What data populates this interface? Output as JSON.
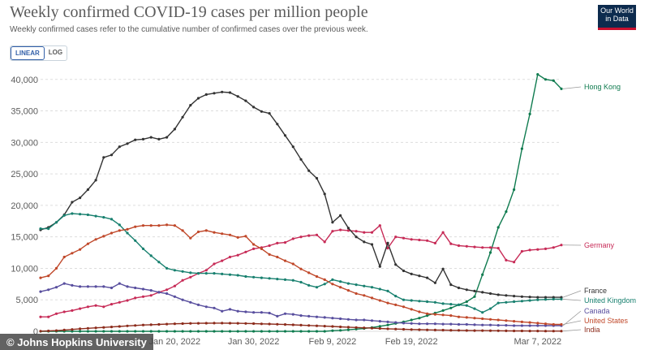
{
  "header": {
    "title": "Weekly confirmed COVID-19 cases per million people",
    "subtitle": "Weekly confirmed cases refer to the cumulative number of confirmed cases over the previous week.",
    "logo_line1": "Our World",
    "logo_line2": "in Data"
  },
  "controls": {
    "linear_label": "LINEAR",
    "log_label": "LOG"
  },
  "source": "© Johns Hopkins University",
  "chart_data": {
    "type": "line",
    "x_dates": [
      "2022-01-03",
      "2022-01-04",
      "2022-01-05",
      "2022-01-06",
      "2022-01-07",
      "2022-01-08",
      "2022-01-09",
      "2022-01-10",
      "2022-01-11",
      "2022-01-12",
      "2022-01-13",
      "2022-01-14",
      "2022-01-15",
      "2022-01-16",
      "2022-01-17",
      "2022-01-18",
      "2022-01-19",
      "2022-01-20",
      "2022-01-21",
      "2022-01-22",
      "2022-01-23",
      "2022-01-24",
      "2022-01-25",
      "2022-01-26",
      "2022-01-27",
      "2022-01-28",
      "2022-01-29",
      "2022-01-30",
      "2022-01-31",
      "2022-02-01",
      "2022-02-02",
      "2022-02-03",
      "2022-02-04",
      "2022-02-05",
      "2022-02-06",
      "2022-02-07",
      "2022-02-08",
      "2022-02-09",
      "2022-02-10",
      "2022-02-11",
      "2022-02-12",
      "2022-02-13",
      "2022-02-14",
      "2022-02-15",
      "2022-02-16",
      "2022-02-17",
      "2022-02-18",
      "2022-02-19",
      "2022-02-20",
      "2022-02-21",
      "2022-02-22",
      "2022-02-23",
      "2022-02-24",
      "2022-02-25",
      "2022-02-26",
      "2022-02-27",
      "2022-02-28",
      "2022-03-01",
      "2022-03-02",
      "2022-03-03",
      "2022-03-04",
      "2022-03-05",
      "2022-03-06",
      "2022-03-07",
      "2022-03-08",
      "2022-03-09",
      "2022-03-10"
    ],
    "x_tick_labels": [
      "Jan 20, 2022",
      "Jan 30, 2022",
      "Feb 9, 2022",
      "Feb 19, 2022",
      "Mar 7, 2022"
    ],
    "x_tick_dates": [
      "2022-01-20",
      "2022-01-30",
      "2022-02-09",
      "2022-02-19",
      "2022-03-07"
    ],
    "y_ticks": [
      0,
      5000,
      10000,
      15000,
      20000,
      25000,
      30000,
      35000,
      40000
    ],
    "y_tick_labels": [
      "0",
      "5,000",
      "10,000",
      "15,000",
      "20,000",
      "25,000",
      "30,000",
      "35,000",
      "40,000"
    ],
    "ylim": [
      0,
      41000
    ],
    "grid": "horizontal dashed",
    "legend": "line-end labels, right",
    "series": [
      {
        "name": "Hong Kong",
        "color": "#0f7b4f",
        "values": [
          0,
          0,
          0,
          0,
          0,
          0,
          0,
          0,
          0,
          0,
          0,
          0,
          0,
          0,
          0,
          0,
          0,
          0,
          0,
          0,
          0,
          0,
          0,
          0,
          0,
          0,
          0,
          0,
          0,
          0,
          0,
          0,
          0,
          0,
          0,
          0,
          0,
          100,
          150,
          250,
          350,
          450,
          600,
          800,
          1000,
          1250,
          1500,
          1800,
          2100,
          2500,
          2900,
          3300,
          3700,
          4200,
          4700,
          5500,
          9000,
          12500,
          16500,
          19000,
          22500,
          29000,
          34500,
          40800,
          40000,
          39800,
          38500
        ]
      },
      {
        "name": "Germany",
        "color": "#c72b57",
        "values": [
          2300,
          2300,
          2800,
          3100,
          3300,
          3600,
          3900,
          4100,
          3900,
          4300,
          4600,
          4900,
          5300,
          5500,
          5700,
          6200,
          6600,
          7200,
          8100,
          8600,
          9200,
          9700,
          10700,
          11200,
          11800,
          12100,
          12600,
          13100,
          13300,
          13600,
          14000,
          14100,
          14700,
          15000,
          15200,
          15300,
          14200,
          15900,
          16100,
          16000,
          15900,
          15700,
          15700,
          16800,
          13200,
          15000,
          14800,
          14600,
          14500,
          14400,
          14000,
          15700,
          13900,
          13600,
          13500,
          13400,
          13300,
          13300,
          13200,
          11300,
          11000,
          12700,
          12900,
          13000,
          13100,
          13300,
          13700
        ]
      },
      {
        "name": "France",
        "color": "#333333",
        "values": [
          16100,
          16500,
          17300,
          18500,
          20500,
          21200,
          22500,
          24000,
          27600,
          28000,
          29300,
          29800,
          30400,
          30500,
          30800,
          30500,
          30800,
          32100,
          34000,
          35900,
          37000,
          37600,
          37800,
          38000,
          37900,
          37300,
          36600,
          35600,
          34900,
          34600,
          32900,
          31100,
          29300,
          27300,
          25500,
          24300,
          21800,
          17300,
          18400,
          16400,
          15000,
          14200,
          13800,
          10300,
          14000,
          10600,
          9600,
          9100,
          8800,
          8500,
          7700,
          9900,
          7400,
          6900,
          6600,
          6400,
          6200,
          6000,
          5800,
          5700,
          5600,
          5500,
          5450,
          5400,
          5400,
          5400,
          5400
        ]
      },
      {
        "name": "United Kingdom",
        "color": "#18806f",
        "values": [
          16300,
          16300,
          17300,
          18400,
          18700,
          18600,
          18500,
          18300,
          18100,
          17800,
          16900,
          15600,
          14400,
          13100,
          12000,
          11000,
          10000,
          9700,
          9500,
          9300,
          9200,
          9200,
          9200,
          9100,
          9000,
          8900,
          8700,
          8600,
          8500,
          8400,
          8300,
          8200,
          8100,
          7800,
          7300,
          7000,
          7500,
          8200,
          7900,
          7600,
          7400,
          7200,
          7000,
          6700,
          6400,
          5600,
          5000,
          4900,
          4800,
          4700,
          4600,
          4400,
          4300,
          4200,
          4100,
          3600,
          3000,
          3600,
          4500,
          4600,
          4700,
          4800,
          4900,
          5000,
          5050,
          5100,
          5100
        ]
      },
      {
        "name": "Canada",
        "color": "#584e9e",
        "values": [
          6300,
          6600,
          7000,
          7600,
          7300,
          7100,
          7100,
          7100,
          7100,
          6900,
          7600,
          7100,
          6900,
          6700,
          6500,
          6200,
          6000,
          5500,
          5000,
          4600,
          4200,
          3900,
          3700,
          3200,
          3500,
          3200,
          3100,
          3000,
          3000,
          2900,
          2400,
          2800,
          2700,
          2500,
          2400,
          2300,
          2200,
          2100,
          2000,
          1900,
          1800,
          1800,
          1700,
          1600,
          1500,
          1400,
          1300,
          1250,
          1200,
          1200,
          1200,
          1150,
          1150,
          1100,
          1100,
          1050,
          1000,
          1000,
          950,
          950,
          900,
          900,
          900,
          900,
          900,
          900,
          900
        ]
      },
      {
        "name": "United States",
        "color": "#c0482a",
        "values": [
          8500,
          8800,
          10000,
          11800,
          12400,
          13000,
          13900,
          14600,
          15100,
          15600,
          16000,
          16200,
          16600,
          16800,
          16800,
          16800,
          16900,
          16800,
          16000,
          14800,
          15800,
          16000,
          15700,
          15500,
          15300,
          14900,
          15100,
          13800,
          13100,
          12200,
          11800,
          11200,
          10700,
          9900,
          9300,
          8700,
          8200,
          7500,
          7000,
          6500,
          6000,
          5700,
          5300,
          4900,
          4500,
          4200,
          3900,
          3500,
          3100,
          2800,
          2700,
          2600,
          2500,
          2300,
          2200,
          2100,
          2000,
          1900,
          1800,
          1700,
          1600,
          1500,
          1400,
          1300,
          1200,
          1100,
          1100
        ]
      },
      {
        "name": "India",
        "color": "#8c2c1c",
        "values": [
          20,
          60,
          120,
          200,
          300,
          400,
          480,
          560,
          620,
          700,
          780,
          860,
          930,
          1000,
          1050,
          1100,
          1150,
          1200,
          1230,
          1260,
          1280,
          1290,
          1300,
          1300,
          1290,
          1270,
          1250,
          1220,
          1190,
          1160,
          1120,
          1080,
          1030,
          980,
          930,
          880,
          820,
          770,
          710,
          660,
          600,
          550,
          500,
          450,
          400,
          360,
          320,
          290,
          260,
          230,
          210,
          190,
          170,
          150,
          130,
          120,
          110,
          100,
          90,
          80,
          70,
          60,
          55,
          50,
          45,
          40,
          40
        ]
      }
    ]
  },
  "legend_labels": {
    "hong_kong": "Hong Kong",
    "germany": "Germany",
    "france": "France",
    "uk": "United Kingdom",
    "canada": "Canada",
    "us": "United States",
    "india": "India"
  }
}
